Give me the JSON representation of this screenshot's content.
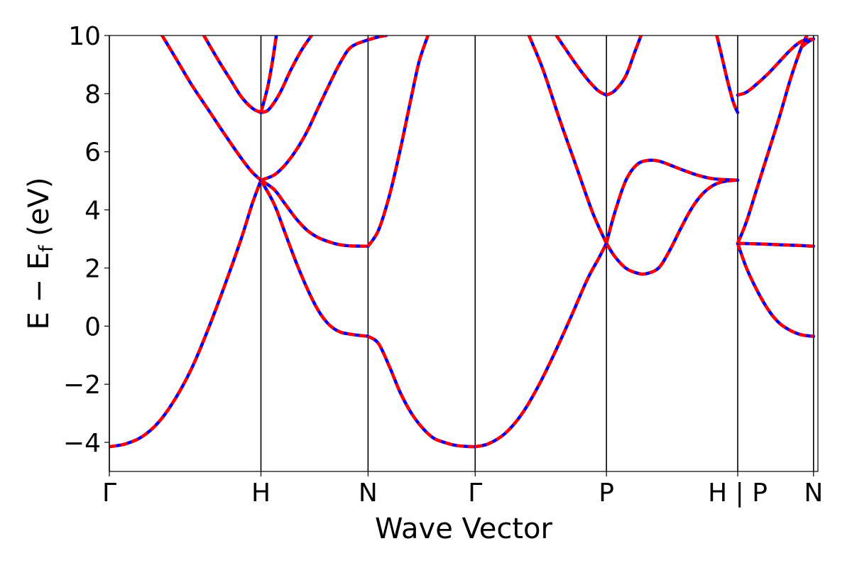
{
  "chart_data": {
    "type": "line",
    "xlabel": "Wave Vector",
    "ylabel": "E − E",
    "ylabel_sub": "f",
    "ylabel_unit": " (eV)",
    "ylim": [
      -5,
      10
    ],
    "xlim": [
      0,
      6.45
    ],
    "yticks": [
      {
        "value": -4,
        "label": "−4"
      },
      {
        "value": -2,
        "label": "−2"
      },
      {
        "value": 0,
        "label": "0"
      },
      {
        "value": 2,
        "label": "2"
      },
      {
        "value": 4,
        "label": "4"
      },
      {
        "value": 6,
        "label": "6"
      },
      {
        "value": 8,
        "label": "8"
      },
      {
        "value": 10,
        "label": "10"
      }
    ],
    "kpoints": [
      {
        "x": 0.0,
        "label": "Γ"
      },
      {
        "x": 1.38,
        "label": "H"
      },
      {
        "x": 2.355,
        "label": "N"
      },
      {
        "x": 3.33,
        "label": "Γ"
      },
      {
        "x": 4.525,
        "label": "P"
      },
      {
        "x": 5.72,
        "label": "H | P"
      },
      {
        "x": 6.41,
        "label": "N"
      }
    ],
    "grid": false,
    "legend": "none",
    "style": {
      "line_color_a": "#0000ff",
      "line_color_b": "#ff0000",
      "kline_color": "#000000"
    },
    "segments": [
      {
        "name": "Γ–H",
        "x_start": 0.0,
        "x_end": 1.38,
        "bands": [
          [
            [
              0.0,
              -4.15
            ],
            [
              0.15,
              -4.05
            ],
            [
              0.3,
              -3.8
            ],
            [
              0.45,
              -3.3
            ],
            [
              0.6,
              -2.5
            ],
            [
              0.75,
              -1.45
            ],
            [
              0.9,
              -0.1
            ],
            [
              1.05,
              1.4
            ],
            [
              1.2,
              3.0
            ],
            [
              1.3,
              4.2
            ],
            [
              1.38,
              5.02
            ]
          ],
          [
            [
              0.48,
              10.0
            ],
            [
              0.6,
              9.25
            ],
            [
              0.75,
              8.3
            ],
            [
              0.9,
              7.45
            ],
            [
              1.05,
              6.6
            ],
            [
              1.2,
              5.78
            ],
            [
              1.3,
              5.3
            ],
            [
              1.38,
              5.02
            ]
          ],
          [
            [
              0.86,
              10.0
            ],
            [
              1.0,
              9.1
            ],
            [
              1.1,
              8.5
            ],
            [
              1.2,
              7.9
            ],
            [
              1.3,
              7.5
            ],
            [
              1.38,
              7.35
            ]
          ]
        ]
      },
      {
        "name": "H–N",
        "x_start": 1.38,
        "x_end": 2.355,
        "bands": [
          [
            [
              1.38,
              5.02
            ],
            [
              1.5,
              4.2
            ],
            [
              1.6,
              3.2
            ],
            [
              1.7,
              2.2
            ],
            [
              1.8,
              1.3
            ],
            [
              1.9,
              0.55
            ],
            [
              2.0,
              0.05
            ],
            [
              2.1,
              -0.2
            ],
            [
              2.2,
              -0.28
            ],
            [
              2.3,
              -0.33
            ],
            [
              2.355,
              -0.35
            ]
          ],
          [
            [
              1.38,
              5.02
            ],
            [
              1.5,
              4.7
            ],
            [
              1.6,
              4.2
            ],
            [
              1.7,
              3.7
            ],
            [
              1.8,
              3.3
            ],
            [
              1.9,
              3.05
            ],
            [
              2.0,
              2.9
            ],
            [
              2.1,
              2.8
            ],
            [
              2.2,
              2.76
            ],
            [
              2.355,
              2.75
            ]
          ],
          [
            [
              1.38,
              5.02
            ],
            [
              1.5,
              5.2
            ],
            [
              1.6,
              5.55
            ],
            [
              1.7,
              6.05
            ],
            [
              1.8,
              6.7
            ],
            [
              1.9,
              7.5
            ],
            [
              2.0,
              8.3
            ],
            [
              2.1,
              9.05
            ],
            [
              2.2,
              9.6
            ],
            [
              2.355,
              9.85
            ]
          ],
          [
            [
              1.38,
              7.35
            ],
            [
              1.45,
              7.45
            ],
            [
              1.55,
              8.0
            ],
            [
              1.65,
              8.8
            ],
            [
              1.75,
              9.5
            ],
            [
              1.84,
              10.0
            ]
          ],
          [
            [
              1.38,
              7.35
            ],
            [
              1.44,
              8.2
            ],
            [
              1.48,
              9.0
            ],
            [
              1.52,
              10.0
            ]
          ],
          [
            [
              2.355,
              9.85
            ],
            [
              2.45,
              9.95
            ],
            [
              2.52,
              10.0
            ]
          ]
        ]
      },
      {
        "name": "N–Γ",
        "x_start": 2.355,
        "x_end": 3.33,
        "bands": [
          [
            [
              2.355,
              -0.35
            ],
            [
              2.45,
              -0.6
            ],
            [
              2.55,
              -1.4
            ],
            [
              2.65,
              -2.3
            ],
            [
              2.75,
              -3.0
            ],
            [
              2.85,
              -3.5
            ],
            [
              2.95,
              -3.85
            ],
            [
              3.05,
              -4.0
            ],
            [
              3.15,
              -4.1
            ],
            [
              3.25,
              -4.14
            ],
            [
              3.33,
              -4.15
            ]
          ],
          [
            [
              2.355,
              2.75
            ],
            [
              2.45,
              3.3
            ],
            [
              2.55,
              4.5
            ],
            [
              2.65,
              6.1
            ],
            [
              2.75,
              7.9
            ],
            [
              2.82,
              9.1
            ],
            [
              2.9,
              10.0
            ]
          ]
        ]
      },
      {
        "name": "Γ–P",
        "x_start": 3.33,
        "x_end": 4.525,
        "bands": [
          [
            [
              3.33,
              -4.15
            ],
            [
              3.45,
              -4.05
            ],
            [
              3.6,
              -3.7
            ],
            [
              3.75,
              -3.05
            ],
            [
              3.9,
              -2.1
            ],
            [
              4.05,
              -0.95
            ],
            [
              4.2,
              0.3
            ],
            [
              4.35,
              1.6
            ],
            [
              4.45,
              2.3
            ],
            [
              4.525,
              2.85
            ]
          ],
          [
            [
              3.82,
              10.0
            ],
            [
              3.95,
              8.8
            ],
            [
              4.1,
              7.1
            ],
            [
              4.25,
              5.5
            ],
            [
              4.4,
              3.9
            ],
            [
              4.525,
              2.85
            ]
          ],
          [
            [
              4.07,
              10.0
            ],
            [
              4.15,
              9.55
            ],
            [
              4.25,
              9.0
            ],
            [
              4.35,
              8.5
            ],
            [
              4.45,
              8.1
            ],
            [
              4.525,
              7.95
            ]
          ]
        ]
      },
      {
        "name": "P–H",
        "x_start": 4.525,
        "x_end": 5.72,
        "bands": [
          [
            [
              4.525,
              2.85
            ],
            [
              4.6,
              2.4
            ],
            [
              4.7,
              2.0
            ],
            [
              4.8,
              1.83
            ],
            [
              4.88,
              1.8
            ],
            [
              5.0,
              2.0
            ],
            [
              5.1,
              2.6
            ],
            [
              5.2,
              3.35
            ],
            [
              5.3,
              4.05
            ],
            [
              5.4,
              4.55
            ],
            [
              5.5,
              4.85
            ],
            [
              5.6,
              4.98
            ],
            [
              5.72,
              5.02
            ]
          ],
          [
            [
              4.525,
              2.85
            ],
            [
              4.6,
              3.9
            ],
            [
              4.7,
              5.0
            ],
            [
              4.8,
              5.55
            ],
            [
              4.9,
              5.7
            ],
            [
              5.0,
              5.68
            ],
            [
              5.1,
              5.55
            ],
            [
              5.2,
              5.4
            ],
            [
              5.35,
              5.2
            ],
            [
              5.5,
              5.07
            ],
            [
              5.72,
              5.02
            ]
          ],
          [
            [
              4.525,
              7.95
            ],
            [
              4.6,
              8.1
            ],
            [
              4.7,
              8.6
            ],
            [
              4.78,
              9.4
            ],
            [
              4.84,
              10.0
            ]
          ],
          [
            [
              5.53,
              10.0
            ],
            [
              5.58,
              9.2
            ],
            [
              5.63,
              8.4
            ],
            [
              5.68,
              7.7
            ],
            [
              5.72,
              7.35
            ]
          ]
        ]
      },
      {
        "name": "P–N",
        "x_start": 5.72,
        "x_end": 6.41,
        "bands": [
          [
            [
              5.72,
              2.85
            ],
            [
              5.8,
              2.0
            ],
            [
              5.9,
              1.2
            ],
            [
              6.0,
              0.55
            ],
            [
              6.1,
              0.1
            ],
            [
              6.2,
              -0.15
            ],
            [
              6.3,
              -0.3
            ],
            [
              6.41,
              -0.35
            ]
          ],
          [
            [
              5.72,
              2.85
            ],
            [
              5.9,
              2.83
            ],
            [
              6.1,
              2.8
            ],
            [
              6.3,
              2.77
            ],
            [
              6.41,
              2.75
            ]
          ],
          [
            [
              5.72,
              2.85
            ],
            [
              5.8,
              3.6
            ],
            [
              5.9,
              4.8
            ],
            [
              6.0,
              6.0
            ],
            [
              6.1,
              7.2
            ],
            [
              6.2,
              8.5
            ],
            [
              6.3,
              9.6
            ],
            [
              6.35,
              10.0
            ]
          ],
          [
            [
              5.72,
              7.95
            ],
            [
              5.8,
              8.05
            ],
            [
              5.9,
              8.35
            ],
            [
              6.0,
              8.7
            ],
            [
              6.1,
              9.1
            ],
            [
              6.2,
              9.5
            ],
            [
              6.3,
              9.8
            ],
            [
              6.41,
              9.88
            ]
          ],
          [
            [
              6.3,
              9.6
            ],
            [
              6.36,
              9.78
            ],
            [
              6.41,
              9.88
            ]
          ]
        ]
      }
    ]
  }
}
